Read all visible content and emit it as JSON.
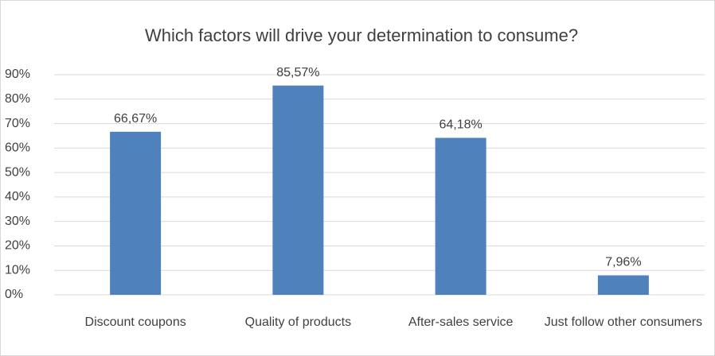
{
  "chart_data": {
    "type": "bar",
    "title": "Which factors will drive your determination to consume?",
    "categories": [
      "Discount coupons",
      "Quality of products",
      "After-sales service",
      "Just follow other consumers"
    ],
    "values": [
      66.67,
      85.57,
      64.18,
      7.96
    ],
    "value_labels": [
      "66,67%",
      "85,57%",
      "64,18%",
      "7,96%"
    ],
    "color": "#4f81bd",
    "ylim": [
      0,
      90
    ],
    "yticks": [
      {
        "value": 0,
        "label": "0%"
      },
      {
        "value": 10,
        "label": "10%"
      },
      {
        "value": 20,
        "label": "20%"
      },
      {
        "value": 30,
        "label": "30%"
      },
      {
        "value": 40,
        "label": "40%"
      },
      {
        "value": 50,
        "label": "50%"
      },
      {
        "value": 60,
        "label": "60%"
      },
      {
        "value": 70,
        "label": "70%"
      },
      {
        "value": 80,
        "label": "80%"
      },
      {
        "value": 90,
        "label": "90%"
      }
    ],
    "grid": true
  }
}
